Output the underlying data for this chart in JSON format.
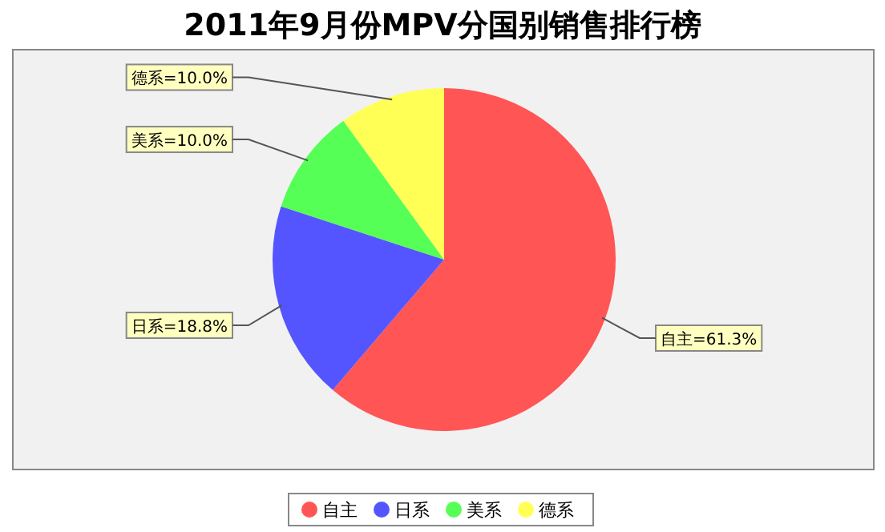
{
  "chart_data": {
    "type": "pie",
    "title": "2011年9月份MPV分国别销售排行榜",
    "categories": [
      "自主",
      "日系",
      "美系",
      "德系"
    ],
    "values": [
      61.3,
      18.8,
      10.0,
      10.0
    ],
    "colors": [
      "#ff5555",
      "#5555ff",
      "#55ff55",
      "#ffff55"
    ],
    "value_labels": [
      "自主=61.3%",
      "日系=18.8%",
      "美系=10.0%",
      "德系=10.0%"
    ],
    "legend": "bottom"
  }
}
